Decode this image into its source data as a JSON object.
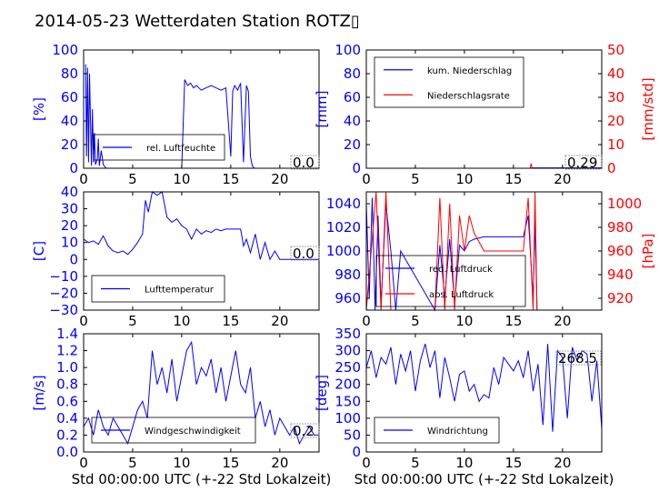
{
  "title": "2014-05-23 Wetterdaten Station ROTZ▯",
  "chart_data": [
    {
      "type": "line",
      "ylabel": "[%]",
      "ylim": [
        0,
        100
      ],
      "yticks": [
        "0",
        "20",
        "40",
        "60",
        "80",
        "100"
      ],
      "xlim": [
        0,
        24
      ],
      "xticks": [
        "0",
        "5",
        "10",
        "15",
        "20"
      ],
      "value_label": "0.0",
      "series": [
        {
          "name": "rel. Luftfeuchte",
          "color": "#0000ff",
          "x": [
            0.2,
            0.3,
            0.4,
            0.5,
            0.6,
            0.8,
            0.9,
            1.0,
            1.1,
            1.2,
            1.4,
            1.5,
            1.6,
            1.8,
            2.0,
            2.3,
            2.5,
            10.0,
            10.3,
            10.6,
            10.9,
            11.2,
            11.5,
            12,
            12.5,
            13,
            13.5,
            14,
            14.5,
            15.0,
            15.2,
            15.4,
            15.7,
            16.0,
            16.3,
            16.6,
            16.8,
            17.0,
            17.2,
            17.4,
            17.7,
            18,
            19,
            20,
            22,
            24
          ],
          "y": [
            88,
            10,
            85,
            5,
            80,
            2,
            50,
            5,
            30,
            3,
            8,
            25,
            2,
            15,
            3,
            0,
            0,
            0,
            75,
            70,
            72,
            68,
            70,
            66,
            68,
            70,
            68,
            66,
            68,
            10,
            65,
            70,
            66,
            72,
            5,
            70,
            65,
            10,
            2,
            0,
            0,
            0,
            0,
            0,
            0,
            0
          ]
        }
      ]
    },
    {
      "type": "line",
      "ylabel": "[mm]",
      "ylabel_right": "[mm/std]",
      "ylim": [
        0,
        100
      ],
      "ylim_right": [
        0,
        50
      ],
      "yticks": [
        "0",
        "20",
        "40",
        "60",
        "80",
        "100"
      ],
      "yticks_right": [
        "0",
        "10",
        "20",
        "30",
        "40",
        "50"
      ],
      "xlim": [
        0,
        24
      ],
      "xticks": [
        "0",
        "5",
        "10",
        "15",
        "20"
      ],
      "value_label": "0.29",
      "series": [
        {
          "name": "kum. Niederschlag",
          "color": "#0000ff",
          "x": [
            0,
            16.8,
            17,
            24
          ],
          "y": [
            0,
            0,
            0.3,
            0.3
          ]
        },
        {
          "name": "Niederschlagsrate",
          "color": "#ff0000",
          "x": [
            0,
            16.7,
            16.8,
            16.9,
            24
          ],
          "y": [
            0,
            0,
            2,
            0,
            0
          ]
        }
      ]
    },
    {
      "type": "line",
      "ylabel": "[C]",
      "ylim": [
        -30,
        40
      ],
      "yticks": [
        "−30",
        "−20",
        "−10",
        "0",
        "10",
        "20",
        "30",
        "40"
      ],
      "xlim": [
        0,
        24
      ],
      "xticks": [
        "0",
        "5",
        "10",
        "15",
        "20"
      ],
      "value_label": "0.0",
      "series": [
        {
          "name": "Lufttemperatur",
          "color": "#0000ff",
          "x": [
            0,
            0.5,
            1,
            1.5,
            2,
            2.5,
            3,
            3.5,
            4,
            4.5,
            5,
            5.5,
            6,
            6.3,
            6.6,
            7,
            7.5,
            8,
            8.5,
            9,
            9.5,
            10,
            10.5,
            11,
            11.5,
            12,
            12.5,
            13,
            13.5,
            14,
            14.5,
            15,
            15.5,
            16,
            16.3,
            16.6,
            17,
            17.5,
            18,
            18.5,
            19,
            19.5,
            20,
            21,
            22,
            24
          ],
          "y": [
            12,
            10,
            11,
            9,
            14,
            8,
            5,
            4,
            5,
            3,
            6,
            10,
            15,
            35,
            28,
            40,
            38,
            40,
            25,
            22,
            24,
            20,
            18,
            12,
            18,
            15,
            17,
            16,
            18,
            17,
            18,
            18,
            18,
            18,
            8,
            12,
            4,
            15,
            0,
            10,
            0,
            5,
            0,
            0,
            0,
            0
          ]
        }
      ]
    },
    {
      "type": "line",
      "ylabel_right": "[hPa]",
      "ylim": [
        950,
        1050
      ],
      "ylim_right": [
        910,
        1010
      ],
      "yticks": [
        "960",
        "980",
        "1000",
        "1020",
        "1040"
      ],
      "yticks_right": [
        "920",
        "940",
        "960",
        "980",
        "1000"
      ],
      "xlim": [
        0,
        24
      ],
      "xticks": [
        "0",
        "5",
        "10",
        "15",
        "20"
      ],
      "series": [
        {
          "name": "red. Luftdruck",
          "color": "#0000ff",
          "x": [
            0,
            0.3,
            0.6,
            0.9,
            1.2,
            1.5,
            2,
            2.5,
            3,
            3.5,
            7,
            7.5,
            8,
            8.5,
            9,
            9.5,
            10,
            10.5,
            11,
            12,
            13,
            14,
            15,
            16,
            16.5,
            17,
            17.2,
            17.4,
            24
          ],
          "y": [
            1040,
            960,
            1045,
            950,
            1030,
            955,
            1040,
            1000,
            950,
            1000,
            950,
            1005,
            960,
            1010,
            955,
            1005,
            1000,
            1008,
            1010,
            1012,
            1012,
            1012,
            1012,
            1012,
            1030,
            960,
            1025,
            950,
            950
          ]
        },
        {
          "name": "abs. Luftdruck",
          "color": "#ff0000",
          "x": [
            0,
            1,
            1.5,
            2,
            2.5,
            3,
            7,
            7.5,
            8,
            8.5,
            9,
            9.5,
            10,
            10.5,
            11,
            12,
            13,
            14,
            15,
            16,
            16.5,
            17,
            17.2,
            17.4,
            24
          ],
          "y": [
            910,
            1010,
            910,
            1010,
            910,
            910,
            910,
            1005,
            910,
            1000,
            910,
            990,
            960,
            990,
            975,
            960,
            960,
            960,
            960,
            960,
            1005,
            910,
            1010,
            910,
            910
          ]
        }
      ]
    },
    {
      "type": "line",
      "ylabel": "[m/s]",
      "xlabel": "Std 00:00:00 UTC (+-22 Std Lokalzeit)",
      "ylim": [
        0,
        1.4
      ],
      "yticks": [
        "0.0",
        "0.2",
        "0.4",
        "0.6",
        "0.8",
        "1.0",
        "1.2",
        "1.4"
      ],
      "xlim": [
        0,
        24
      ],
      "xticks": [
        "0",
        "5",
        "10",
        "15",
        "20"
      ],
      "value_label": "0.2",
      "series": [
        {
          "name": "Windgeschwindigkeit",
          "color": "#0000ff",
          "x": [
            0,
            0.5,
            1,
            1.5,
            2,
            2.5,
            3,
            3.5,
            4,
            4.5,
            5,
            5.5,
            6,
            6.5,
            7,
            7.5,
            8,
            8.5,
            9,
            9.5,
            10,
            10.5,
            11,
            11.5,
            12,
            12.5,
            13,
            13.5,
            14,
            14.5,
            15,
            15.5,
            16,
            16.5,
            17,
            17.5,
            18,
            18.5,
            19,
            19.5,
            20,
            20.5,
            21,
            21.5,
            22,
            22.5,
            23,
            23.5,
            24
          ],
          "y": [
            0.3,
            0.4,
            0.2,
            0.5,
            0.3,
            0.2,
            0.4,
            0.3,
            0.2,
            0.1,
            0.3,
            0.5,
            0.6,
            0.4,
            1.2,
            0.8,
            1.0,
            0.7,
            1.1,
            0.6,
            0.9,
            1.2,
            1.3,
            0.8,
            1.0,
            0.9,
            1.1,
            0.7,
            1.0,
            0.6,
            0.9,
            1.2,
            0.8,
            0.7,
            1.0,
            0.4,
            0.6,
            0.3,
            0.5,
            0.2,
            0.4,
            0.3,
            0.2,
            0.3,
            0.1,
            0.2,
            0.3,
            0.2,
            0.2
          ]
        }
      ]
    },
    {
      "type": "line",
      "ylabel": "[deg]",
      "xlabel": "Std 00:00:00 UTC (+-22 Std Lokalzeit)",
      "ylim": [
        0,
        350
      ],
      "yticks": [
        "0",
        "50",
        "100",
        "150",
        "200",
        "250",
        "300",
        "350"
      ],
      "xlim": [
        0,
        24
      ],
      "xticks": [
        "0",
        "5",
        "10",
        "15",
        "20"
      ],
      "value_label": "268.5",
      "series": [
        {
          "name": "Windrichtung",
          "color": "#0000ff",
          "x": [
            0,
            0.5,
            1,
            1.5,
            2,
            2.5,
            3,
            3.5,
            4,
            4.5,
            5,
            5.5,
            6,
            6.5,
            7,
            7.5,
            8,
            8.5,
            9,
            9.5,
            10,
            10.5,
            11,
            11.5,
            12,
            12.5,
            13,
            13.5,
            14,
            14.5,
            15,
            15.5,
            16,
            16.5,
            17,
            17.5,
            18,
            18.5,
            19,
            19.5,
            20,
            20.5,
            21,
            21.5,
            22,
            22.5,
            23,
            23.5,
            24
          ],
          "y": [
            250,
            300,
            220,
            280,
            260,
            310,
            200,
            290,
            240,
            300,
            180,
            270,
            320,
            250,
            300,
            160,
            280,
            220,
            150,
            230,
            240,
            180,
            200,
            150,
            170,
            160,
            250,
            200,
            280,
            260,
            240,
            270,
            220,
            300,
            180,
            260,
            80,
            320,
            60,
            300,
            280,
            100,
            310,
            270,
            300,
            290,
            150,
            270,
            70
          ]
        }
      ]
    }
  ]
}
